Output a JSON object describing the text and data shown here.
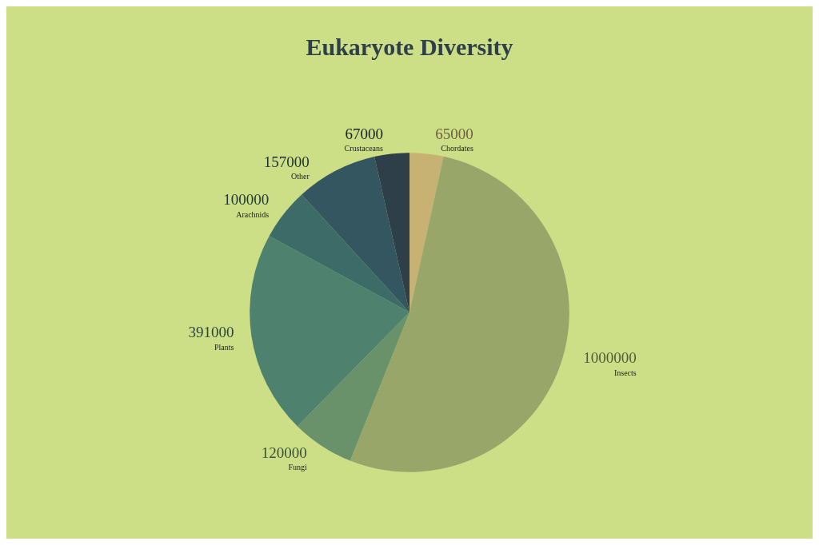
{
  "chart_data": {
    "type": "pie",
    "title": "Eukaryote Diversity",
    "categories": [
      "Chordates",
      "Insects",
      "Fungi",
      "Plants",
      "Arachnids",
      "Other",
      "Crustaceans"
    ],
    "values": [
      65000,
      1000000,
      120000,
      391000,
      100000,
      157000,
      67000
    ],
    "colors": [
      "#c8b273",
      "#98a66a",
      "#6a926a",
      "#4f826e",
      "#3d6b68",
      "#335660",
      "#2f3f4a"
    ],
    "data_labels": true,
    "legend": false
  }
}
